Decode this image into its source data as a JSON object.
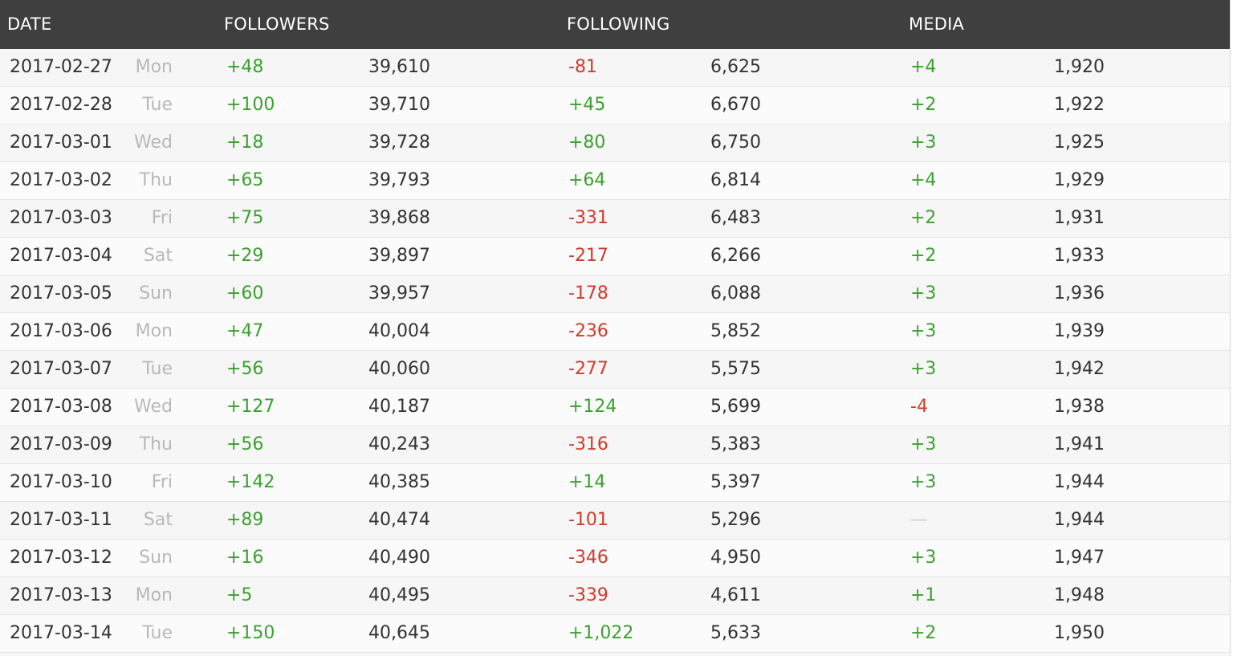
{
  "headers": {
    "date": "DATE",
    "followers": "FOLLOWERS",
    "following": "FOLLOWING",
    "media": "MEDIA"
  },
  "colors": {
    "header_bg": "#3f3f3f",
    "positive": "#3aa12e",
    "negative": "#d23a2a",
    "day": "#b8b8b8"
  },
  "rows": [
    {
      "date": "2017-02-27",
      "day": "Mon",
      "followers_delta": "+48",
      "followers": "39,610",
      "following_delta": "-81",
      "following": "6,625",
      "media_delta": "+4",
      "media": "1,920"
    },
    {
      "date": "2017-02-28",
      "day": "Tue",
      "followers_delta": "+100",
      "followers": "39,710",
      "following_delta": "+45",
      "following": "6,670",
      "media_delta": "+2",
      "media": "1,922"
    },
    {
      "date": "2017-03-01",
      "day": "Wed",
      "followers_delta": "+18",
      "followers": "39,728",
      "following_delta": "+80",
      "following": "6,750",
      "media_delta": "+3",
      "media": "1,925"
    },
    {
      "date": "2017-03-02",
      "day": "Thu",
      "followers_delta": "+65",
      "followers": "39,793",
      "following_delta": "+64",
      "following": "6,814",
      "media_delta": "+4",
      "media": "1,929"
    },
    {
      "date": "2017-03-03",
      "day": "Fri",
      "followers_delta": "+75",
      "followers": "39,868",
      "following_delta": "-331",
      "following": "6,483",
      "media_delta": "+2",
      "media": "1,931"
    },
    {
      "date": "2017-03-04",
      "day": "Sat",
      "followers_delta": "+29",
      "followers": "39,897",
      "following_delta": "-217",
      "following": "6,266",
      "media_delta": "+2",
      "media": "1,933"
    },
    {
      "date": "2017-03-05",
      "day": "Sun",
      "followers_delta": "+60",
      "followers": "39,957",
      "following_delta": "-178",
      "following": "6,088",
      "media_delta": "+3",
      "media": "1,936"
    },
    {
      "date": "2017-03-06",
      "day": "Mon",
      "followers_delta": "+47",
      "followers": "40,004",
      "following_delta": "-236",
      "following": "5,852",
      "media_delta": "+3",
      "media": "1,939"
    },
    {
      "date": "2017-03-07",
      "day": "Tue",
      "followers_delta": "+56",
      "followers": "40,060",
      "following_delta": "-277",
      "following": "5,575",
      "media_delta": "+3",
      "media": "1,942"
    },
    {
      "date": "2017-03-08",
      "day": "Wed",
      "followers_delta": "+127",
      "followers": "40,187",
      "following_delta": "+124",
      "following": "5,699",
      "media_delta": "-4",
      "media": "1,938"
    },
    {
      "date": "2017-03-09",
      "day": "Thu",
      "followers_delta": "+56",
      "followers": "40,243",
      "following_delta": "-316",
      "following": "5,383",
      "media_delta": "+3",
      "media": "1,941"
    },
    {
      "date": "2017-03-10",
      "day": "Fri",
      "followers_delta": "+142",
      "followers": "40,385",
      "following_delta": "+14",
      "following": "5,397",
      "media_delta": "+3",
      "media": "1,944"
    },
    {
      "date": "2017-03-11",
      "day": "Sat",
      "followers_delta": "+89",
      "followers": "40,474",
      "following_delta": "-101",
      "following": "5,296",
      "media_delta": "—",
      "media": "1,944"
    },
    {
      "date": "2017-03-12",
      "day": "Sun",
      "followers_delta": "+16",
      "followers": "40,490",
      "following_delta": "-346",
      "following": "4,950",
      "media_delta": "+3",
      "media": "1,947"
    },
    {
      "date": "2017-03-13",
      "day": "Mon",
      "followers_delta": "+5",
      "followers": "40,495",
      "following_delta": "-339",
      "following": "4,611",
      "media_delta": "+1",
      "media": "1,948"
    },
    {
      "date": "2017-03-14",
      "day": "Tue",
      "followers_delta": "+150",
      "followers": "40,645",
      "following_delta": "+1,022",
      "following": "5,633",
      "media_delta": "+2",
      "media": "1,950"
    }
  ]
}
